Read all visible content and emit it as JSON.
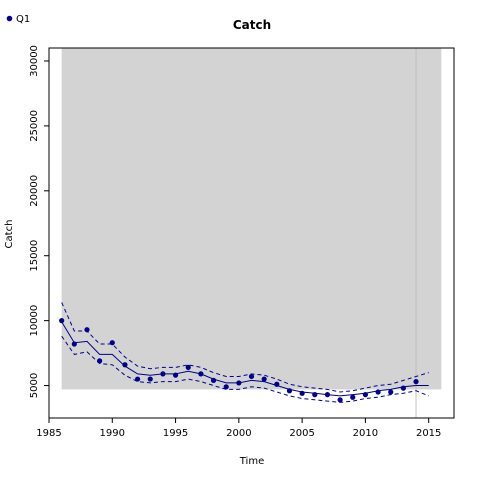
{
  "chart_data": {
    "type": "line",
    "title": "Catch",
    "xlabel": "Time",
    "ylabel": "Catch",
    "xlim": [
      1985,
      2017
    ],
    "ylim": [
      2500,
      31000
    ],
    "x_ticks": [
      1985,
      1990,
      1995,
      2000,
      2005,
      2010,
      2015
    ],
    "y_ticks": [
      5000,
      10000,
      15000,
      20000,
      25000,
      30000
    ],
    "shaded_region": {
      "x_start": 1986,
      "x_end": 2016,
      "y_start": 4700,
      "y_end": 31000,
      "color": "#d3d3d3"
    },
    "reference_line_x": 2014,
    "legend": {
      "position": "top-left",
      "entries": [
        "Q1"
      ],
      "color": "#00008b"
    },
    "series": [
      {
        "name": "Q1",
        "color": "#00008b",
        "points": {
          "x": [
            1986,
            1987,
            1988,
            1989,
            1990,
            1991,
            1992,
            1993,
            1994,
            1995,
            1996,
            1997,
            1998,
            1999,
            2000,
            2001,
            2002,
            2003,
            2004,
            2005,
            2006,
            2007,
            2008,
            2009,
            2010,
            2011,
            2012,
            2013,
            2014
          ],
          "y": [
            10000,
            8200,
            9300,
            6900,
            8300,
            6600,
            5500,
            5500,
            5900,
            5800,
            6400,
            5900,
            5400,
            4900,
            5200,
            5700,
            5500,
            5100,
            4600,
            4400,
            4300,
            4300,
            3900,
            4100,
            4300,
            4500,
            4500,
            4800,
            5300
          ]
        },
        "fit": {
          "x": [
            1986,
            1987,
            1988,
            1989,
            1990,
            1991,
            1992,
            1993,
            1994,
            1995,
            1996,
            1997,
            1998,
            1999,
            2000,
            2001,
            2002,
            2003,
            2004,
            2005,
            2006,
            2007,
            2008,
            2009,
            2010,
            2011,
            2012,
            2013,
            2014,
            2015
          ],
          "y": [
            9900,
            8300,
            8400,
            7400,
            7400,
            6500,
            5900,
            5800,
            5900,
            5900,
            6100,
            5900,
            5500,
            5200,
            5200,
            5400,
            5300,
            5000,
            4700,
            4500,
            4400,
            4300,
            4200,
            4300,
            4400,
            4600,
            4700,
            4900,
            5000,
            5000
          ]
        },
        "upper": {
          "x": [
            1986,
            1987,
            1988,
            1989,
            1990,
            1991,
            1992,
            1993,
            1994,
            1995,
            1996,
            1997,
            1998,
            1999,
            2000,
            2001,
            2002,
            2003,
            2004,
            2005,
            2006,
            2007,
            2008,
            2009,
            2010,
            2011,
            2012,
            2013,
            2014,
            2015
          ],
          "y": [
            11400,
            9200,
            9200,
            8200,
            8200,
            7200,
            6500,
            6300,
            6400,
            6400,
            6600,
            6400,
            6000,
            5700,
            5700,
            5900,
            5800,
            5500,
            5100,
            4900,
            4800,
            4700,
            4500,
            4600,
            4800,
            5000,
            5100,
            5400,
            5700,
            6000
          ]
        },
        "lower": {
          "x": [
            1986,
            1987,
            1988,
            1989,
            1990,
            1991,
            1992,
            1993,
            1994,
            1995,
            1996,
            1997,
            1998,
            1999,
            2000,
            2001,
            2002,
            2003,
            2004,
            2005,
            2006,
            2007,
            2008,
            2009,
            2010,
            2011,
            2012,
            2013,
            2014,
            2015
          ],
          "y": [
            8800,
            7400,
            7600,
            6700,
            6600,
            5800,
            5300,
            5200,
            5300,
            5300,
            5500,
            5300,
            5000,
            4700,
            4700,
            4900,
            4800,
            4500,
            4200,
            4000,
            3900,
            3800,
            3700,
            3800,
            4000,
            4100,
            4300,
            4400,
            4600,
            4200
          ]
        }
      }
    ]
  }
}
